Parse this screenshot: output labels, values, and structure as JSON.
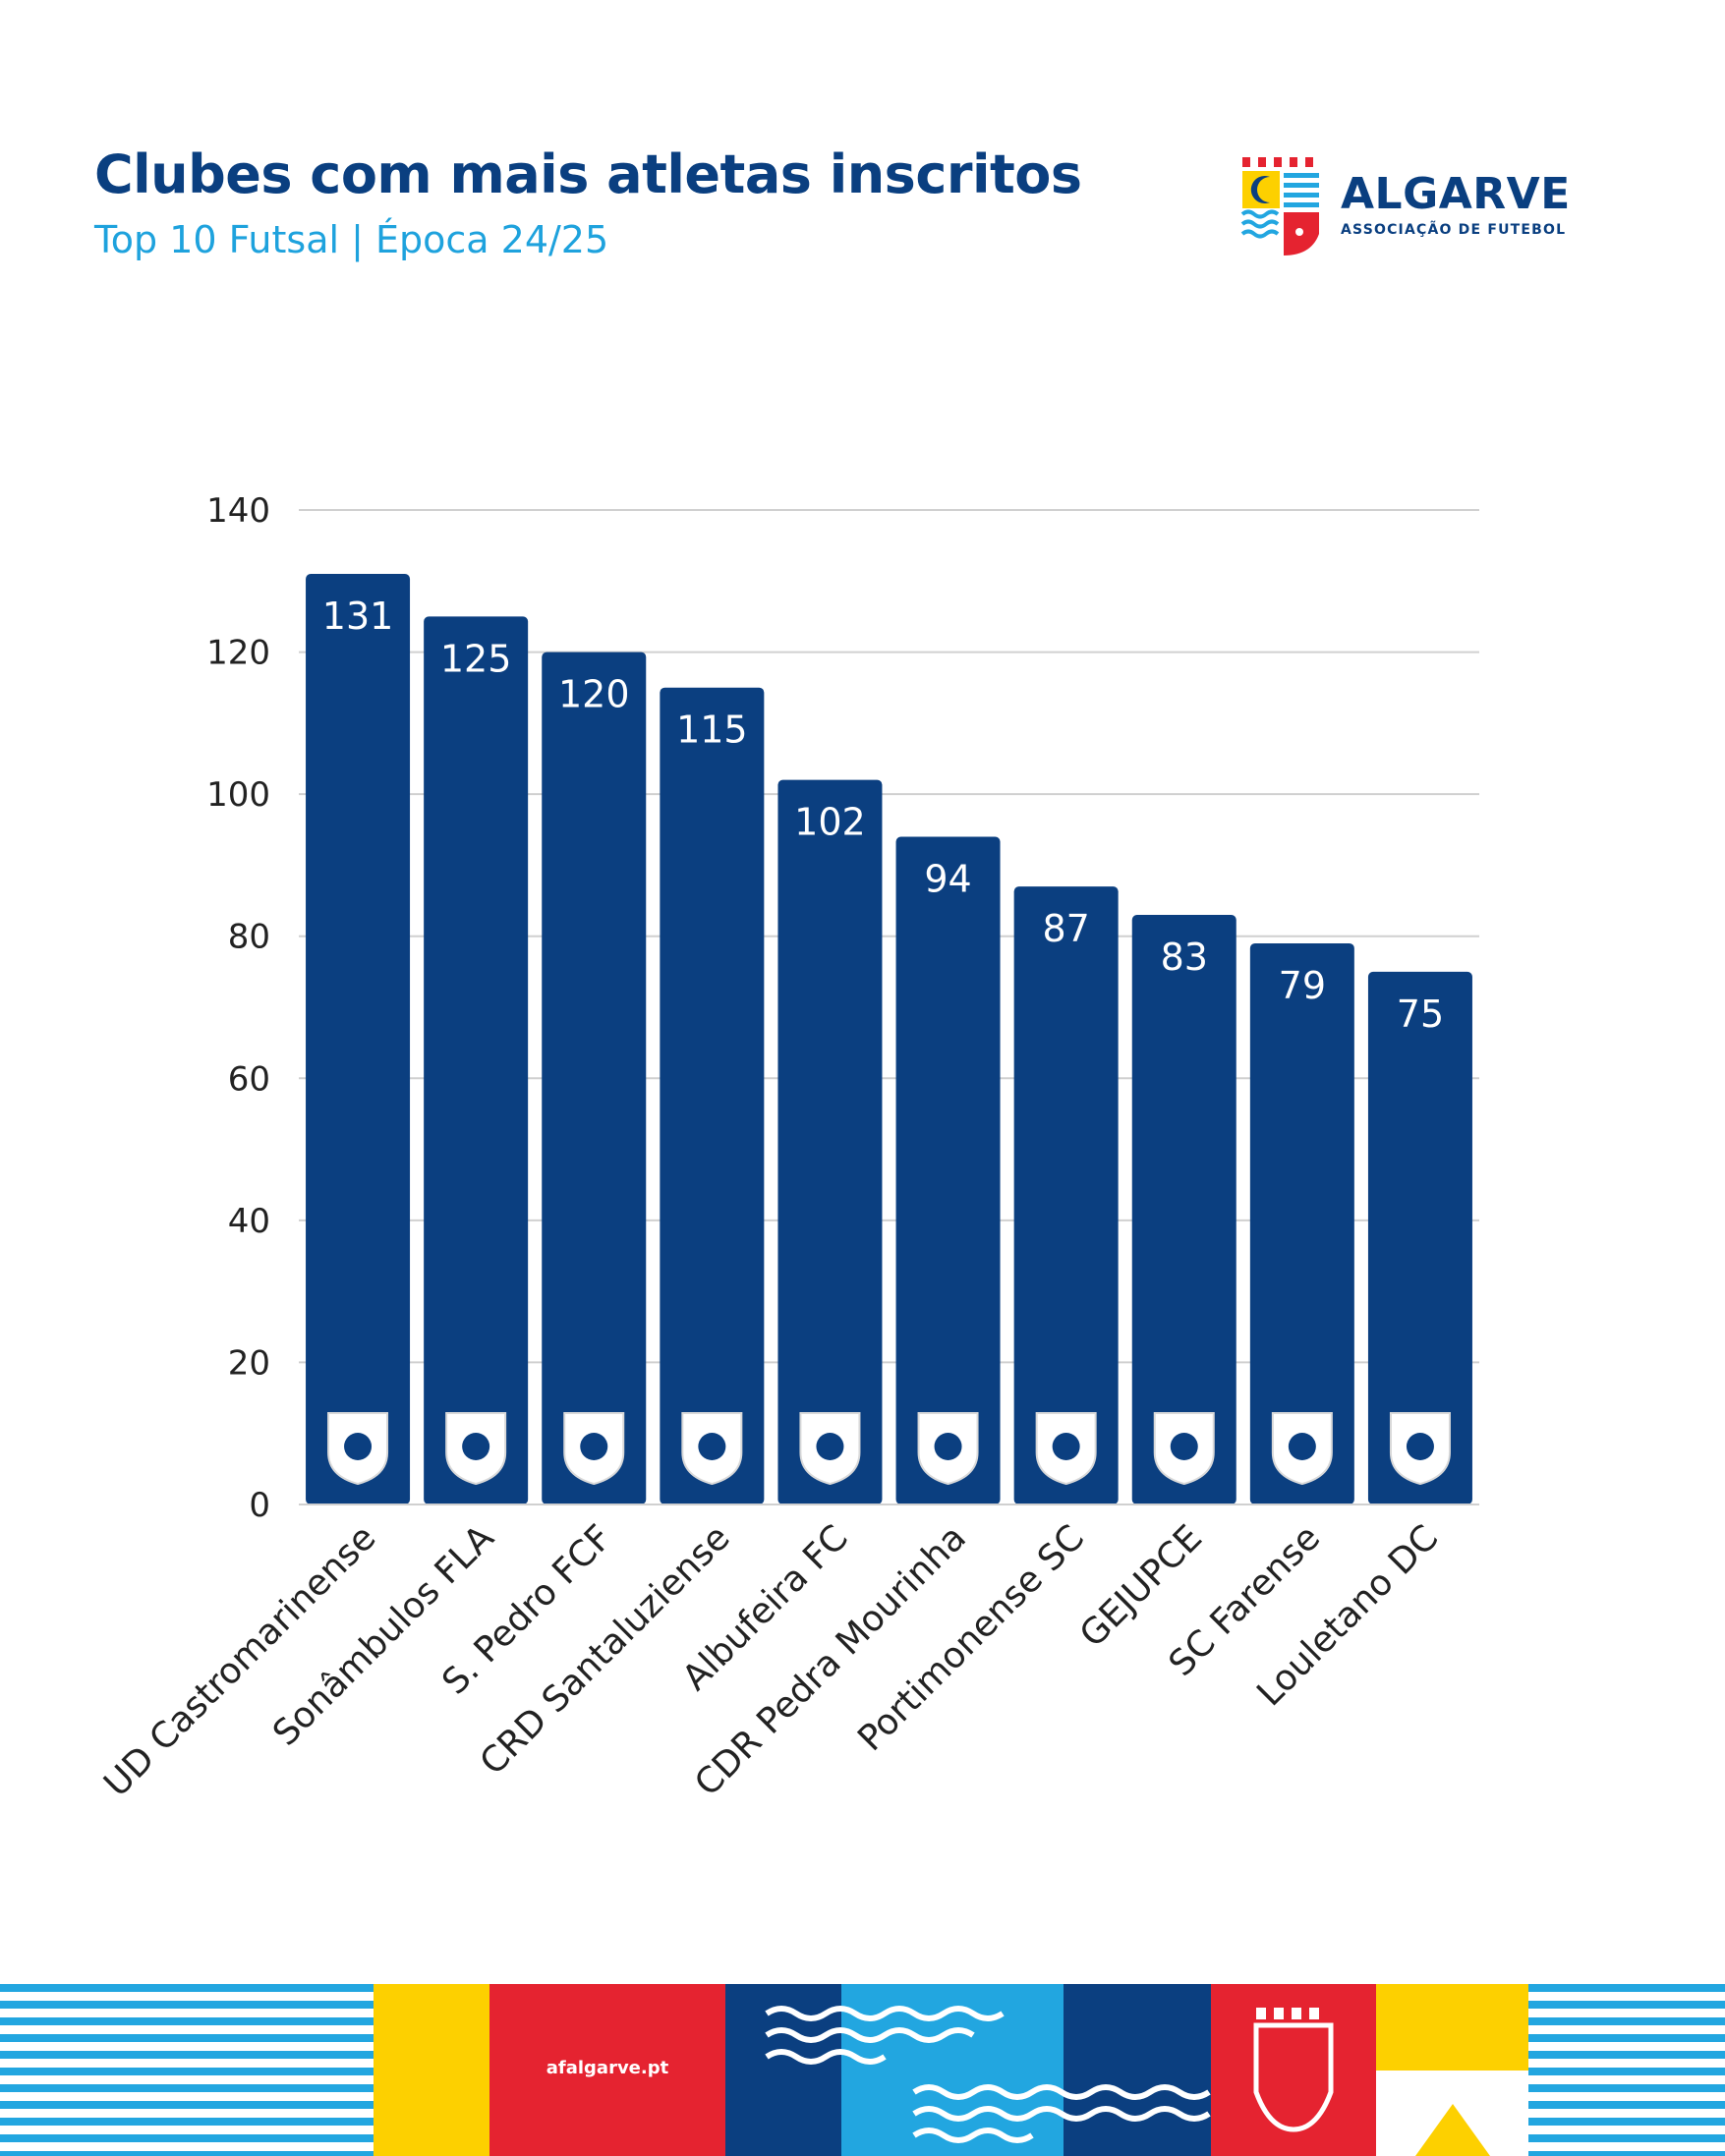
{
  "header": {
    "title": "Clubes com mais atletas inscritos",
    "subtitle": "Top 10 Futsal | Época 24/25"
  },
  "logo": {
    "name": "ALGARVE",
    "tagline": "ASSOCIAÇÃO DE FUTEBOL"
  },
  "footer": {
    "url": "afalgarve.pt"
  },
  "colors": {
    "bar": "#0b3f80",
    "title": "#0a3f80",
    "subtitle": "#1ea2dd",
    "brand_red": "#e52330",
    "brand_yellow": "#fdd000",
    "brand_light_blue": "#22a6e0"
  },
  "chart_data": {
    "type": "bar",
    "title": "Clubes com mais atletas inscritos",
    "subtitle": "Top 10 Futsal | Época 24/25",
    "xlabel": "",
    "ylabel": "",
    "ylim": [
      0,
      140
    ],
    "yticks": [
      0,
      20,
      40,
      60,
      80,
      100,
      120,
      140
    ],
    "grid": true,
    "legend": "none",
    "categories": [
      "UD Castromarinense",
      "Sonâmbulos FLA",
      "S. Pedro FCF",
      "CRD Santaluziense",
      "Albufeira FC",
      "CDR Pedra Mourinha",
      "Portimonense SC",
      "GEJUPCE",
      "SC Farense",
      "Louletano DC"
    ],
    "values": [
      131,
      125,
      120,
      115,
      102,
      94,
      87,
      83,
      79,
      75
    ],
    "data_labels": [
      "131",
      "125",
      "120",
      "115",
      "102",
      "94",
      "87",
      "83",
      "79",
      "75"
    ],
    "bar_icons": [
      "ud-castromarinense-crest-icon",
      "sonambulos-fla-crest-icon",
      "s-pedro-fcf-crest-icon",
      "crd-santaluziense-crest-icon",
      "albufeira-fc-crest-icon",
      "cdr-pedra-mourinha-crest-icon",
      "portimonense-sc-crest-icon",
      "gejupce-crest-icon",
      "sc-farense-crest-icon",
      "louletano-dc-crest-icon"
    ]
  }
}
